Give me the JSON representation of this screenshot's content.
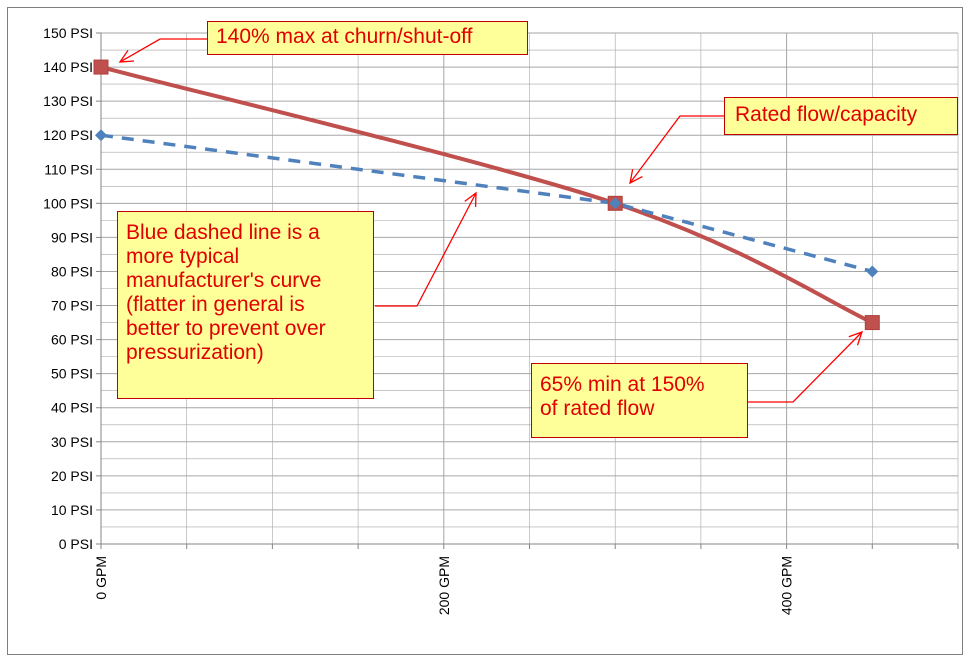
{
  "chart_data": {
    "type": "line",
    "title": "",
    "xlabel": "",
    "ylabel": "",
    "x_range": [
      0,
      500
    ],
    "y_range": [
      0,
      150
    ],
    "x_tick_labels": [
      {
        "value": 0,
        "label": "0 GPM"
      },
      {
        "value": 200,
        "label": "200 GPM"
      },
      {
        "value": 400,
        "label": "400 GPM"
      }
    ],
    "y_tick_labels": [
      "0 PSI",
      "10 PSI",
      "20 PSI",
      "30 PSI",
      "40 PSI",
      "50 PSI",
      "60 PSI",
      "70 PSI",
      "80 PSI",
      "90 PSI",
      "100 PSI",
      "110 PSI",
      "120 PSI",
      "130 PSI",
      "140 PSI",
      "150 PSI"
    ],
    "grid": true,
    "legend": "none",
    "series": [
      {
        "color": "#c0504d",
        "line_style": "solid",
        "marker": "square",
        "points": [
          [
            0,
            140
          ],
          [
            300,
            100
          ],
          [
            450,
            65
          ]
        ]
      },
      {
        "color": "#4f81bd",
        "line_style": "dashed",
        "marker": "diamond",
        "points": [
          [
            0,
            120
          ],
          [
            300,
            100
          ],
          [
            450,
            80
          ]
        ]
      }
    ],
    "annotations": [
      {
        "id": "churn",
        "text": "140% max at churn/shut-off"
      },
      {
        "id": "rated",
        "text": "Rated flow/capacity"
      },
      {
        "id": "typical",
        "text": "Blue dashed line is a\nmore typical\nmanufacturer's curve\n(flatter in general is\nbetter to prevent over\npressurization)"
      },
      {
        "id": "min",
        "text": "65% min at 150%\nof rated flow"
      }
    ],
    "colors": {
      "annotation_text": "#e00000",
      "annotation_fill": "#ffff99",
      "annotation_border": "#c00000",
      "grid": "#a6a6a6"
    }
  }
}
